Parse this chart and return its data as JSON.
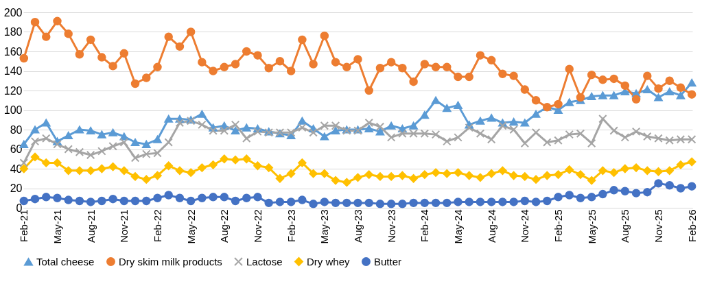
{
  "chart_data": {
    "type": "line",
    "categories": [
      "Feb-21",
      null,
      null,
      "May-21",
      null,
      null,
      "Aug-21",
      null,
      null,
      "Nov-21",
      null,
      null,
      "Feb-22",
      null,
      null,
      "May-22",
      null,
      null,
      "Aug-22",
      null,
      null,
      "Nov-22",
      null,
      null,
      "Feb-23",
      null,
      null,
      "May-23",
      null,
      null,
      "Aug-23",
      null,
      null,
      "Nov-23",
      null,
      null,
      "Feb-24",
      null,
      null,
      "May-24",
      null,
      null,
      "Aug-24",
      null,
      null,
      "Nov-24",
      null,
      null,
      "Feb-25",
      null,
      null,
      "May-25",
      null,
      null,
      "Aug-25",
      null,
      null,
      "Nov-25",
      null,
      null,
      "Feb-26"
    ],
    "series": [
      {
        "name": "Total cheese",
        "color": "#5b9bd5",
        "marker": "triangle",
        "values": [
          65,
          80,
          87,
          68,
          74,
          80,
          79,
          75,
          77,
          73,
          67,
          65,
          70,
          91,
          91,
          90,
          96,
          82,
          84,
          79,
          82,
          81,
          78,
          76,
          74,
          89,
          81,
          73,
          79,
          80,
          80,
          81,
          78,
          84,
          81,
          84,
          95,
          110,
          102,
          105,
          85,
          89,
          92,
          87,
          88,
          87,
          96,
          103,
          100,
          108,
          110,
          114,
          115,
          115,
          119,
          117,
          121,
          113,
          119,
          115,
          128
        ]
      },
      {
        "name": "Dry skim milk products",
        "color": "#ed7d31",
        "marker": "circle",
        "values": [
          153,
          190,
          175,
          191,
          178,
          157,
          172,
          154,
          145,
          158,
          127,
          133,
          144,
          175,
          165,
          180,
          149,
          140,
          144,
          147,
          160,
          156,
          143,
          150,
          140,
          172,
          147,
          176,
          149,
          144,
          152,
          120,
          143,
          149,
          143,
          129,
          147,
          144,
          144,
          134,
          134,
          156,
          151,
          137,
          135,
          121,
          110,
          103,
          106,
          142,
          113,
          136,
          131,
          132,
          125,
          111,
          135,
          122,
          130,
          123,
          116
        ]
      },
      {
        "name": "Lactose",
        "color": "#a5a5a5",
        "marker": "cross",
        "values": [
          46,
          68,
          71,
          65,
          60,
          57,
          54,
          58,
          63,
          67,
          51,
          55,
          56,
          67,
          87,
          89,
          85,
          79,
          79,
          85,
          71,
          78,
          77,
          77,
          77,
          82,
          77,
          84,
          84,
          79,
          79,
          87,
          83,
          72,
          76,
          76,
          76,
          75,
          68,
          72,
          82,
          76,
          70,
          84,
          80,
          66,
          77,
          67,
          69,
          75,
          76,
          66,
          91,
          79,
          72,
          78,
          73,
          71,
          69,
          70,
          70
        ]
      },
      {
        "name": "Dry whey",
        "color": "#ffc000",
        "marker": "diamond",
        "values": [
          40,
          52,
          46,
          46,
          38,
          38,
          38,
          40,
          42,
          38,
          32,
          29,
          33,
          43,
          38,
          36,
          41,
          44,
          50,
          49,
          50,
          43,
          41,
          30,
          35,
          46,
          35,
          35,
          28,
          26,
          31,
          34,
          32,
          32,
          33,
          30,
          34,
          36,
          35,
          36,
          33,
          31,
          35,
          38,
          33,
          32,
          29,
          33,
          34,
          39,
          34,
          28,
          38,
          36,
          40,
          41,
          38,
          37,
          38,
          44,
          47
        ]
      },
      {
        "name": "Butter",
        "color": "#4472c4",
        "marker": "circle",
        "values": [
          7,
          9,
          11,
          10,
          8,
          7,
          6,
          7,
          9,
          7,
          7,
          7,
          10,
          13,
          10,
          7,
          10,
          11,
          11,
          7,
          10,
          11,
          5,
          6,
          6,
          8,
          4,
          6,
          5,
          5,
          5,
          5,
          4,
          4,
          4,
          5,
          5,
          5,
          5,
          6,
          6,
          6,
          6,
          6,
          6,
          7,
          6,
          7,
          11,
          13,
          10,
          11,
          14,
          18,
          17,
          15,
          16,
          25,
          23,
          20,
          22
        ]
      }
    ],
    "ylim": [
      0,
      200
    ],
    "yticks": [
      0,
      20,
      40,
      60,
      80,
      100,
      120,
      140,
      160,
      180,
      200
    ],
    "grid": "y",
    "legend": "bottom",
    "line_style": "solid"
  }
}
